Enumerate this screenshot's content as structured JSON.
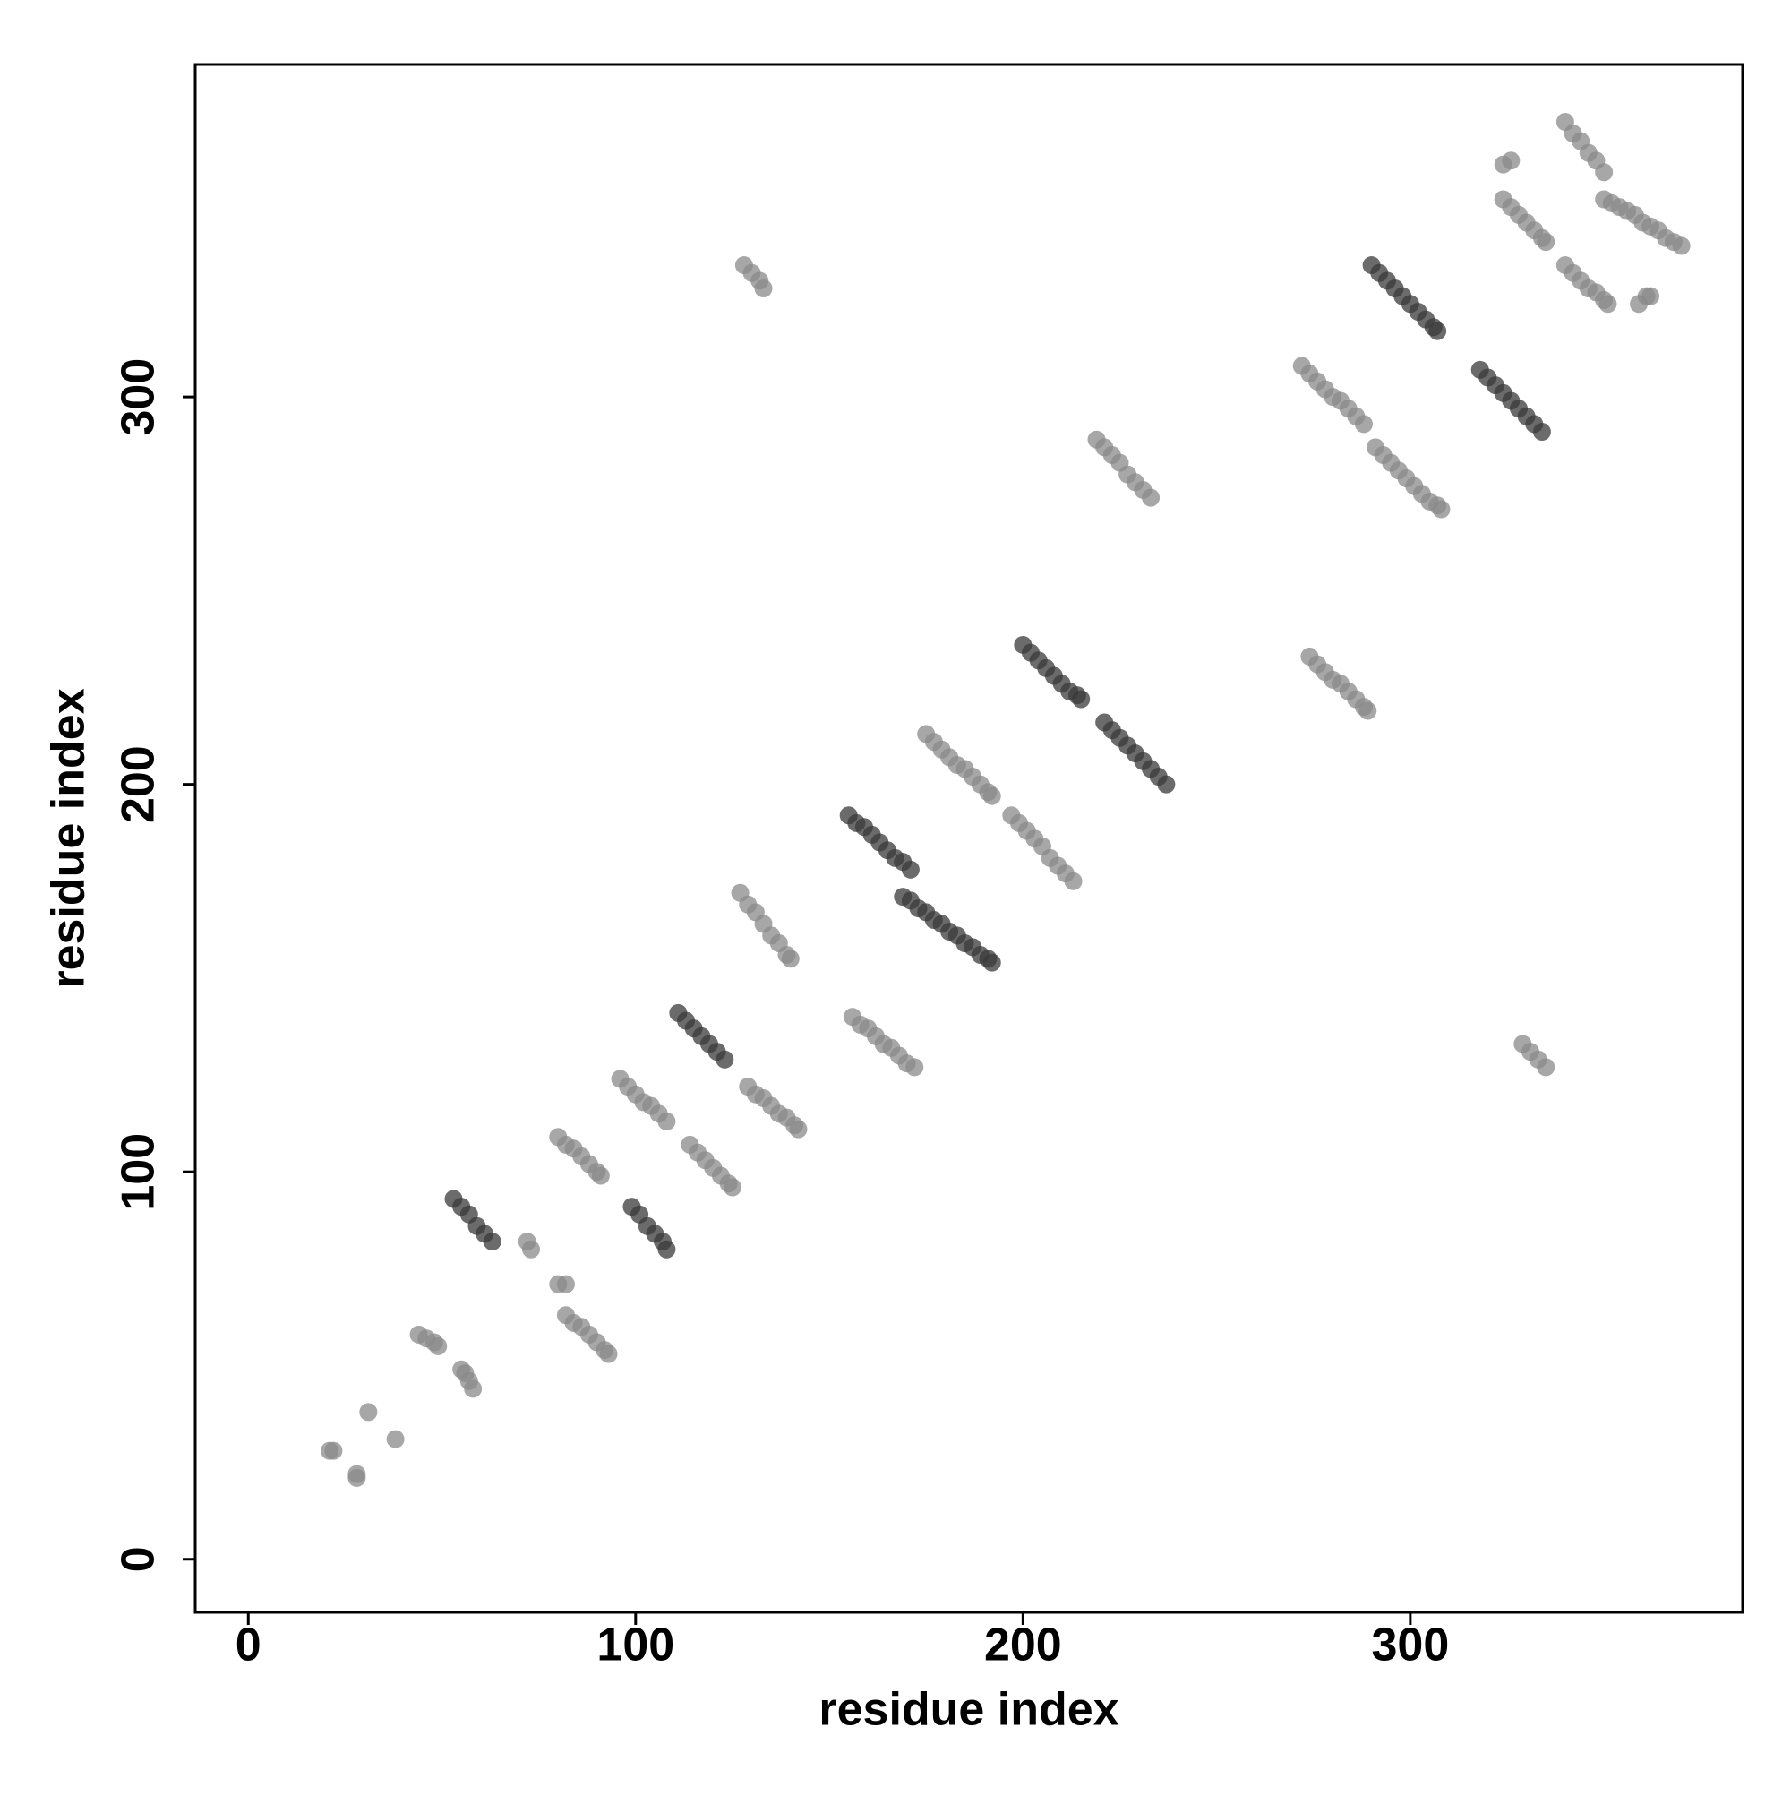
{
  "chart_data": {
    "type": "scatter",
    "xlabel": "residue index",
    "ylabel": "residue index",
    "xlim": [
      -13.7,
      385.8
    ],
    "ylim": [
      -13.7,
      385.8
    ],
    "xticks": [
      0,
      100,
      200,
      300
    ],
    "yticks": [
      0,
      100,
      200,
      300
    ],
    "series": [
      {
        "color": "#8a8a8a",
        "x": [
          21,
          22,
          28,
          28,
          31,
          38,
          44,
          46,
          48,
          49,
          55,
          56,
          57,
          58,
          72,
          73,
          80,
          82,
          82,
          84,
          86,
          88,
          90,
          92,
          93,
          80,
          82,
          84,
          86,
          88,
          90,
          91,
          96,
          98,
          100,
          102,
          104,
          106,
          108,
          114,
          116,
          118,
          120,
          122,
          124,
          125,
          129,
          131,
          133,
          135,
          137,
          139,
          141,
          142,
          127,
          129,
          131,
          133,
          135,
          137,
          139,
          140,
          128,
          130,
          132,
          133,
          156,
          158,
          160,
          162,
          164,
          166,
          168,
          170,
          172,
          175,
          177,
          179,
          181,
          183,
          185,
          187,
          189,
          191,
          192,
          197,
          199,
          201,
          203,
          205,
          207,
          209,
          211,
          213,
          219,
          221,
          223,
          225,
          227,
          229,
          231,
          233,
          272,
          274,
          276,
          278,
          280,
          282,
          284,
          286,
          288,
          274,
          276,
          278,
          280,
          282,
          284,
          286,
          288,
          289,
          291,
          293,
          295,
          297,
          299,
          301,
          303,
          305,
          307,
          308,
          324,
          326,
          324,
          326,
          328,
          330,
          332,
          334,
          335,
          329,
          331,
          333,
          335,
          340,
          342,
          344,
          346,
          348,
          350,
          340,
          342,
          344,
          346,
          348,
          350,
          351,
          359,
          361,
          362,
          350,
          352,
          354,
          356,
          358,
          360,
          362,
          364,
          366,
          368,
          370
        ],
        "y": [
          28,
          28,
          22,
          21,
          38,
          31,
          58,
          57,
          56,
          55,
          49,
          48,
          46,
          44,
          82,
          80,
          71,
          71,
          63,
          61,
          60,
          58,
          56,
          54,
          53,
          109,
          107,
          106,
          104,
          102,
          100,
          99,
          124,
          122,
          120,
          118,
          117,
          115,
          113,
          107,
          105,
          103,
          101,
          99,
          97,
          96,
          122,
          120,
          119,
          117,
          115,
          114,
          112,
          111,
          172,
          169,
          167,
          164,
          161,
          159,
          156,
          155,
          334,
          332,
          330,
          328,
          140,
          138,
          137,
          135,
          133,
          132,
          130,
          128,
          127,
          213,
          211,
          209,
          207,
          205,
          204,
          202,
          200,
          198,
          197,
          192,
          190,
          188,
          186,
          184,
          181,
          179,
          177,
          175,
          289,
          287,
          285,
          283,
          280,
          278,
          276,
          274,
          308,
          306,
          304,
          302,
          300,
          299,
          297,
          295,
          293,
          233,
          231,
          229,
          227,
          226,
          224,
          222,
          220,
          219,
          287,
          285,
          283,
          281,
          279,
          277,
          275,
          273,
          272,
          271,
          360,
          361,
          351,
          349,
          347,
          345,
          343,
          341,
          340,
          133,
          131,
          129,
          127,
          371,
          368,
          366,
          363,
          361,
          358,
          334,
          332,
          330,
          328,
          327,
          325,
          324,
          324,
          326,
          326,
          351,
          350,
          349,
          348,
          347,
          345,
          344,
          343,
          341,
          340,
          339
        ]
      },
      {
        "color": "#3a3a3a",
        "x": [
          53,
          55,
          57,
          59,
          61,
          63,
          99,
          101,
          103,
          105,
          107,
          108,
          111,
          113,
          115,
          117,
          119,
          121,
          123,
          155,
          157,
          159,
          161,
          163,
          165,
          167,
          169,
          171,
          169,
          171,
          173,
          175,
          177,
          179,
          181,
          183,
          185,
          187,
          189,
          191,
          192,
          200,
          202,
          204,
          206,
          208,
          210,
          212,
          214,
          215,
          221,
          223,
          225,
          227,
          229,
          231,
          233,
          235,
          237,
          290,
          292,
          294,
          296,
          298,
          300,
          302,
          304,
          306,
          307,
          318,
          320,
          322,
          324,
          326,
          328,
          330,
          332,
          334
        ],
        "y": [
          93,
          91,
          89,
          86,
          84,
          82,
          91,
          89,
          86,
          84,
          82,
          80,
          141,
          139,
          137,
          135,
          133,
          131,
          129,
          192,
          190,
          189,
          187,
          185,
          183,
          181,
          180,
          178,
          171,
          170,
          168,
          167,
          165,
          164,
          162,
          161,
          159,
          158,
          156,
          155,
          154,
          236,
          234,
          232,
          230,
          228,
          226,
          224,
          223,
          222,
          216,
          214,
          212,
          210,
          208,
          206,
          204,
          202,
          200,
          334,
          332,
          330,
          328,
          326,
          324,
          322,
          320,
          318,
          317,
          307,
          305,
          303,
          301,
          299,
          297,
          295,
          293,
          291
        ]
      }
    ]
  }
}
